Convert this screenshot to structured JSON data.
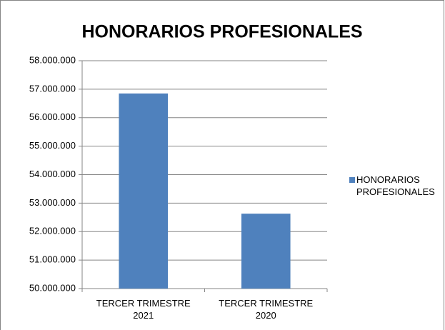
{
  "chart_data": {
    "type": "bar",
    "title": "HONORARIOS PROFESIONALES",
    "categories": [
      "TERCER TRIMESTRE 2021",
      "TERCER TRIMESTRE 2020"
    ],
    "series": [
      {
        "name": "HONORARIOS PROFESIONALES",
        "color": "#4f81bd",
        "values": [
          56850000,
          52630000
        ]
      }
    ],
    "ylim": [
      50000000,
      58000000
    ],
    "yticks": [
      {
        "value": 50000000,
        "label": "50.000.000"
      },
      {
        "value": 51000000,
        "label": "51.000.000"
      },
      {
        "value": 52000000,
        "label": "52.000.000"
      },
      {
        "value": 53000000,
        "label": "53.000.000"
      },
      {
        "value": 54000000,
        "label": "54.000.000"
      },
      {
        "value": 55000000,
        "label": "55.000.000"
      },
      {
        "value": 56000000,
        "label": "56.000.000"
      },
      {
        "value": 57000000,
        "label": "57.000.000"
      },
      {
        "value": 58000000,
        "label": "58.000.000"
      }
    ],
    "grid": true,
    "legend": "right"
  }
}
